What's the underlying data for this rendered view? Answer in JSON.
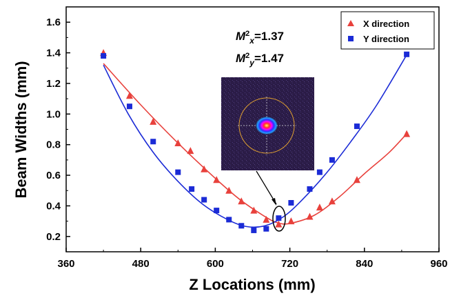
{
  "chart_data": {
    "type": "scatter",
    "xlabel": "Z Locations (mm)",
    "ylabel": "Beam Widths (mm)",
    "xlim": [
      360,
      960
    ],
    "ylim": [
      0.1,
      1.7
    ],
    "xticks": [
      360,
      480,
      600,
      720,
      840,
      960
    ],
    "yticks": [
      0.2,
      0.4,
      0.6,
      0.8,
      1.0,
      1.2,
      1.4,
      1.6
    ],
    "xtick_labels": [
      "360",
      "480",
      "600",
      "720",
      "840",
      "960"
    ],
    "ytick_labels": [
      "0.2",
      "0.4",
      "0.6",
      "0.8",
      "1.0",
      "1.2",
      "1.4",
      "1.6"
    ],
    "grid": false,
    "legend_position": "top-right",
    "series": [
      {
        "name": "X direction",
        "marker": "triangle",
        "color": "#e8413c",
        "x": [
          420,
          462,
          500,
          540,
          560,
          582,
          602,
          622,
          642,
          662,
          682,
          702,
          722,
          752,
          768,
          788,
          828,
          908
        ],
        "y": [
          1.4,
          1.12,
          0.95,
          0.81,
          0.76,
          0.64,
          0.57,
          0.5,
          0.43,
          0.37,
          0.31,
          0.28,
          0.3,
          0.33,
          0.39,
          0.43,
          0.57,
          0.87
        ],
        "fit": [
          [
            420,
            1.33
          ],
          [
            480,
            1.06
          ],
          [
            540,
            0.81
          ],
          [
            600,
            0.58
          ],
          [
            640,
            0.44
          ],
          [
            680,
            0.33
          ],
          [
            700,
            0.29
          ],
          [
            720,
            0.285
          ],
          [
            760,
            0.34
          ],
          [
            800,
            0.46
          ],
          [
            840,
            0.61
          ],
          [
            880,
            0.75
          ],
          [
            910,
            0.88
          ]
        ]
      },
      {
        "name": "Y direction",
        "marker": "square",
        "color": "#1b2bd6",
        "x": [
          420,
          462,
          500,
          540,
          562,
          582,
          602,
          622,
          642,
          662,
          682,
          702,
          722,
          752,
          768,
          788,
          828,
          908
        ],
        "y": [
          1.38,
          1.05,
          0.82,
          0.62,
          0.51,
          0.44,
          0.37,
          0.31,
          0.27,
          0.24,
          0.25,
          0.32,
          0.42,
          0.51,
          0.62,
          0.7,
          0.92,
          1.39
        ],
        "fit": [
          [
            420,
            1.32
          ],
          [
            460,
            1.0
          ],
          [
            500,
            0.75
          ],
          [
            540,
            0.56
          ],
          [
            580,
            0.41
          ],
          [
            620,
            0.31
          ],
          [
            650,
            0.265
          ],
          [
            680,
            0.27
          ],
          [
            710,
            0.33
          ],
          [
            740,
            0.44
          ],
          [
            780,
            0.62
          ],
          [
            820,
            0.83
          ],
          [
            860,
            1.06
          ],
          [
            910,
            1.4
          ]
        ]
      }
    ],
    "annotations": {
      "m2x": {
        "prefix": "M",
        "sup": "2",
        "sub": "x",
        "value": "=1.37"
      },
      "m2y": {
        "prefix": "M",
        "sup": "2",
        "sub": "y",
        "value": "=1.47"
      },
      "inset": "beam profile image with ellipse marking focal region"
    }
  },
  "colors": {
    "x_series": "#e8413c",
    "y_series": "#1b2bd6",
    "inset_bg": "#2a1f45"
  }
}
